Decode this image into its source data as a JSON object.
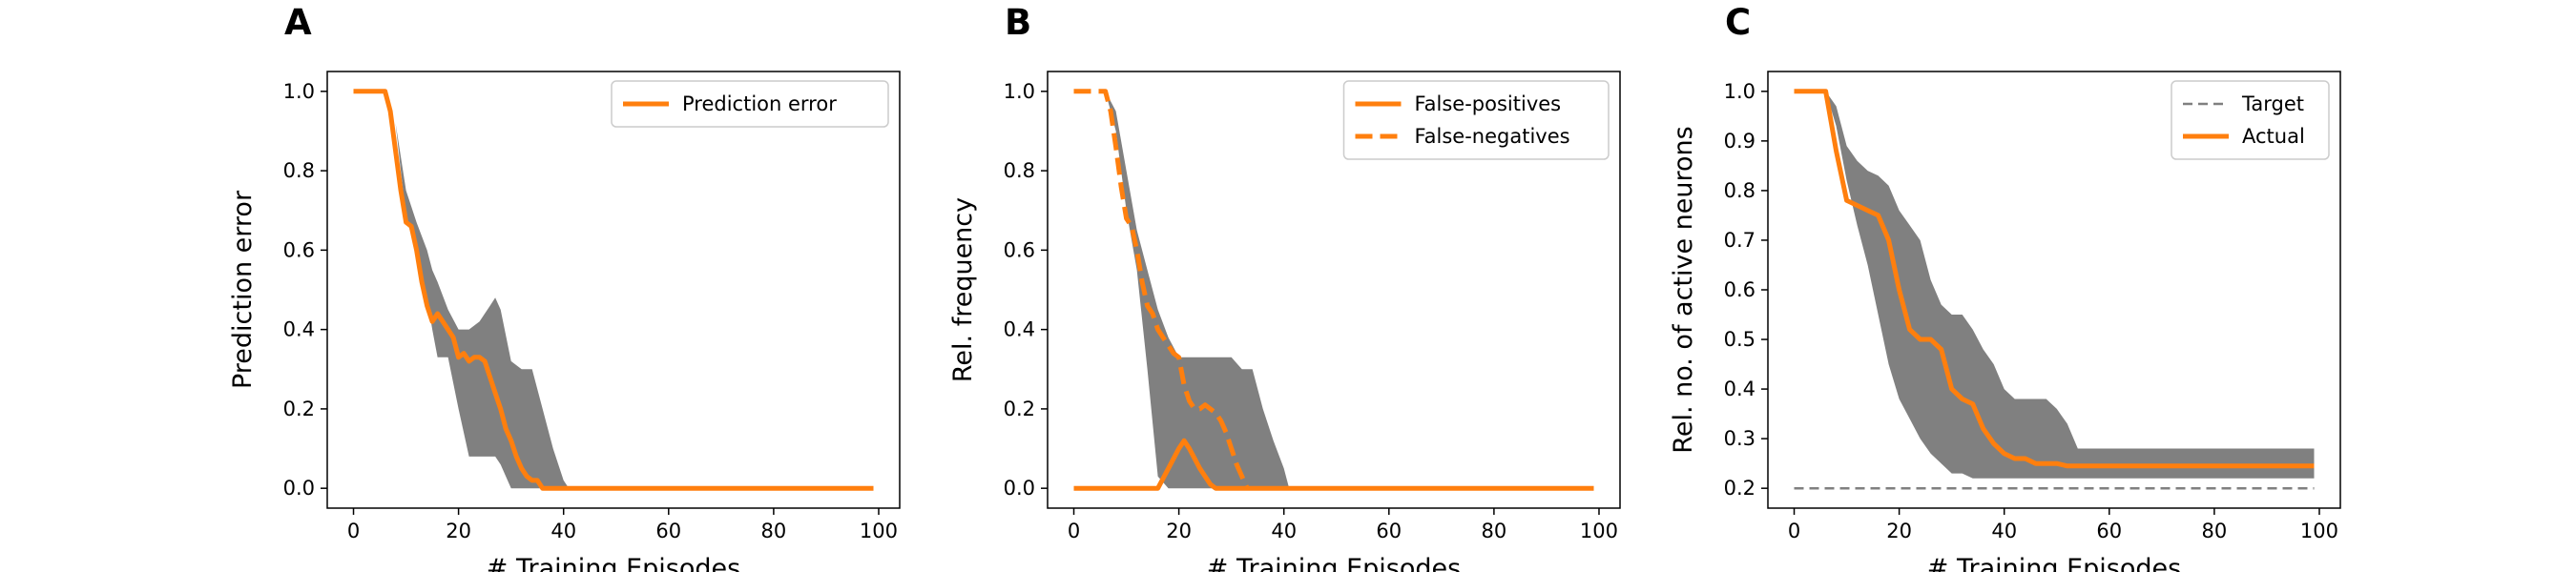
{
  "chart_data": [
    {
      "type": "line",
      "panel_label": "A",
      "xlabel": "# Training Episodes",
      "ylabel": "Prediction error",
      "xlim": [
        -5,
        104
      ],
      "ylim": [
        -0.05,
        1.05
      ],
      "xticks": [
        0,
        20,
        40,
        60,
        80,
        100
      ],
      "yticks": [
        0.0,
        0.2,
        0.4,
        0.6,
        0.8,
        1.0
      ],
      "ytick_decimals": 1,
      "legend_position": "top-right",
      "band": {
        "color": "#808080",
        "x": [
          0,
          6,
          8,
          10,
          12,
          14,
          15,
          16,
          18,
          20,
          22,
          24,
          26,
          27,
          28,
          30,
          32,
          34,
          36,
          38,
          40,
          41,
          42,
          99
        ],
        "upper": [
          1.0,
          1.0,
          0.92,
          0.75,
          0.67,
          0.6,
          0.55,
          0.52,
          0.45,
          0.4,
          0.4,
          0.42,
          0.46,
          0.48,
          0.45,
          0.32,
          0.3,
          0.3,
          0.2,
          0.1,
          0.02,
          0.0,
          0.0,
          0.0
        ],
        "lower": [
          1.0,
          1.0,
          0.92,
          0.68,
          0.6,
          0.48,
          0.4,
          0.33,
          0.33,
          0.2,
          0.08,
          0.08,
          0.08,
          0.08,
          0.06,
          0.0,
          0.0,
          0.0,
          0.0,
          0.0,
          0.0,
          0.0,
          0.0,
          0.0
        ]
      },
      "series": [
        {
          "name": "Prediction error",
          "color": "#ff7f0e",
          "dash": "solid",
          "x": [
            0,
            6,
            7,
            8,
            9,
            10,
            11,
            12,
            13,
            14,
            15,
            16,
            17,
            18,
            19,
            20,
            21,
            22,
            23,
            24,
            25,
            26,
            27,
            28,
            29,
            30,
            31,
            32,
            33,
            34,
            35,
            36,
            37,
            38,
            99
          ],
          "y": [
            1.0,
            1.0,
            0.95,
            0.85,
            0.75,
            0.67,
            0.66,
            0.6,
            0.52,
            0.46,
            0.42,
            0.44,
            0.42,
            0.4,
            0.38,
            0.33,
            0.34,
            0.32,
            0.33,
            0.33,
            0.32,
            0.28,
            0.24,
            0.2,
            0.15,
            0.12,
            0.08,
            0.05,
            0.03,
            0.02,
            0.02,
            0.0,
            0.0,
            0.0,
            0.0
          ]
        }
      ]
    },
    {
      "type": "line",
      "panel_label": "B",
      "xlabel": "# Training Episodes",
      "ylabel": "Rel. frequency",
      "xlim": [
        -5,
        104
      ],
      "ylim": [
        -0.05,
        1.05
      ],
      "xticks": [
        0,
        20,
        40,
        60,
        80,
        100
      ],
      "yticks": [
        0.0,
        0.2,
        0.4,
        0.6,
        0.8,
        1.0
      ],
      "ytick_decimals": 1,
      "legend_position": "top-right",
      "band": {
        "color": "#808080",
        "x": [
          0,
          6,
          8,
          10,
          12,
          14,
          16,
          18,
          20,
          22,
          24,
          26,
          28,
          30,
          32,
          34,
          36,
          38,
          40,
          41,
          42,
          99
        ],
        "upper": [
          1.0,
          1.0,
          0.95,
          0.8,
          0.65,
          0.55,
          0.45,
          0.38,
          0.33,
          0.33,
          0.33,
          0.33,
          0.33,
          0.33,
          0.3,
          0.3,
          0.2,
          0.12,
          0.05,
          0.0,
          0.0,
          0.0
        ],
        "lower": [
          1.0,
          1.0,
          0.9,
          0.7,
          0.55,
          0.3,
          0.03,
          0.0,
          0.0,
          0.0,
          0.0,
          0.0,
          0.0,
          0.0,
          0.0,
          0.0,
          0.0,
          0.0,
          0.0,
          0.0,
          0.0,
          0.0
        ]
      },
      "series": [
        {
          "name": "False-positives",
          "color": "#ff7f0e",
          "dash": "solid",
          "x": [
            0,
            16,
            18,
            20,
            21,
            22,
            24,
            26,
            27,
            28,
            99
          ],
          "y": [
            0.0,
            0.0,
            0.05,
            0.1,
            0.12,
            0.1,
            0.05,
            0.01,
            0.0,
            0.0,
            0.0
          ]
        },
        {
          "name": "False-negatives",
          "color": "#ff7f0e",
          "dash": "dashed",
          "x": [
            0,
            6,
            7,
            8,
            9,
            10,
            11,
            12,
            13,
            14,
            15,
            16,
            17,
            18,
            19,
            20,
            21,
            22,
            23,
            24,
            25,
            26,
            27,
            28,
            29,
            30,
            31,
            32,
            33
          ],
          "y": [
            1.0,
            1.0,
            0.95,
            0.86,
            0.76,
            0.68,
            0.66,
            0.6,
            0.52,
            0.46,
            0.44,
            0.4,
            0.38,
            0.36,
            0.34,
            0.33,
            0.26,
            0.22,
            0.2,
            0.2,
            0.21,
            0.2,
            0.19,
            0.17,
            0.14,
            0.1,
            0.06,
            0.03,
            0.0
          ]
        }
      ]
    },
    {
      "type": "line",
      "panel_label": "C",
      "xlabel": "# Training Episodes",
      "ylabel": "Rel. no. of active neurons",
      "xlim": [
        -5,
        104
      ],
      "ylim": [
        0.16,
        1.04
      ],
      "xticks": [
        0,
        20,
        40,
        60,
        80,
        100
      ],
      "yticks": [
        0.2,
        0.3,
        0.4,
        0.5,
        0.6,
        0.7,
        0.8,
        0.9,
        1.0
      ],
      "ytick_decimals": 1,
      "legend_position": "top-right",
      "band": {
        "color": "#808080",
        "x": [
          0,
          6,
          8,
          10,
          12,
          14,
          16,
          18,
          20,
          22,
          24,
          26,
          28,
          30,
          32,
          34,
          36,
          38,
          40,
          42,
          44,
          46,
          48,
          50,
          52,
          54,
          99
        ],
        "upper": [
          1.0,
          1.0,
          0.97,
          0.89,
          0.86,
          0.84,
          0.83,
          0.81,
          0.76,
          0.73,
          0.7,
          0.62,
          0.57,
          0.55,
          0.55,
          0.52,
          0.48,
          0.45,
          0.4,
          0.38,
          0.38,
          0.38,
          0.38,
          0.36,
          0.33,
          0.28,
          0.28
        ],
        "lower": [
          1.0,
          1.0,
          0.93,
          0.82,
          0.73,
          0.65,
          0.55,
          0.45,
          0.38,
          0.34,
          0.3,
          0.27,
          0.25,
          0.23,
          0.23,
          0.22,
          0.22,
          0.22,
          0.22,
          0.22,
          0.22,
          0.22,
          0.22,
          0.22,
          0.22,
          0.22,
          0.22
        ]
      },
      "series": [
        {
          "name": "Target",
          "color": "#808080",
          "dash": "dashed",
          "x": [
            0,
            99
          ],
          "y": [
            0.2,
            0.2
          ]
        },
        {
          "name": "Actual",
          "color": "#ff7f0e",
          "dash": "solid",
          "x": [
            0,
            6,
            8,
            10,
            12,
            14,
            16,
            18,
            20,
            22,
            24,
            26,
            28,
            30,
            32,
            34,
            36,
            38,
            40,
            42,
            44,
            46,
            48,
            50,
            52,
            54,
            99
          ],
          "y": [
            1.0,
            1.0,
            0.88,
            0.78,
            0.77,
            0.76,
            0.75,
            0.7,
            0.6,
            0.52,
            0.5,
            0.5,
            0.48,
            0.4,
            0.38,
            0.37,
            0.32,
            0.29,
            0.27,
            0.26,
            0.26,
            0.25,
            0.25,
            0.25,
            0.245,
            0.245,
            0.245
          ]
        }
      ]
    }
  ]
}
